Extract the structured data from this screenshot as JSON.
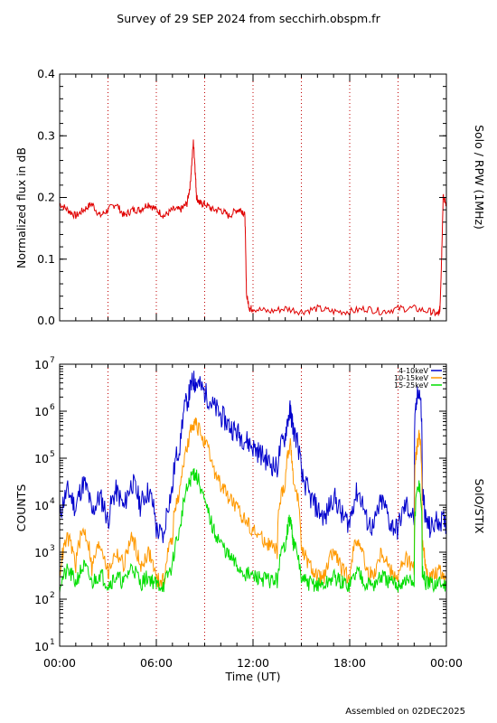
{
  "title": "Survey of 29 SEP 2024 from secchirh.obspm.fr",
  "footer": "Assembled on 02DEC2025",
  "x_axis": {
    "label": "Time (UT)",
    "ticks": [
      "00:00",
      "06:00",
      "12:00",
      "18:00",
      "00:00"
    ],
    "tick_hours": [
      0,
      6,
      12,
      18,
      24
    ],
    "range_hours": [
      0,
      24
    ],
    "dotted_line_hours": [
      3,
      6,
      9,
      12,
      15,
      18,
      21
    ]
  },
  "colors": {
    "rpw": "#e00000",
    "low": "#0000cc",
    "mid": "#ff9900",
    "high": "#00dd00",
    "grid": "#c00000"
  },
  "chart_data": [
    {
      "type": "line",
      "ylabel": "Normalized flux in dB",
      "right_label": "Solo / RPW (1MHz)",
      "ylim": [
        0.0,
        0.4
      ],
      "yticks": [
        "0.0",
        "0.1",
        "0.2",
        "0.3",
        "0.4"
      ],
      "ytick_values": [
        0.0,
        0.1,
        0.2,
        0.3,
        0.4
      ],
      "series": [
        {
          "x": [
            0,
            0.5,
            1,
            1.5,
            2,
            2.5,
            3,
            3.5,
            4,
            4.5,
            5,
            5.5,
            6,
            6.5,
            7,
            7.5,
            7.9,
            8.1,
            8.3,
            8.4,
            8.5,
            8.7,
            9,
            9.5,
            10,
            10.5,
            11,
            11.3,
            11.5,
            11.6,
            11.8,
            12,
            13,
            14,
            15,
            16,
            17,
            18,
            19,
            20,
            21,
            22,
            23,
            23.5,
            23.6,
            23.7,
            23.8,
            24
          ],
          "y": [
            0.19,
            0.18,
            0.17,
            0.18,
            0.19,
            0.17,
            0.18,
            0.19,
            0.17,
            0.18,
            0.18,
            0.19,
            0.18,
            0.17,
            0.18,
            0.18,
            0.19,
            0.22,
            0.29,
            0.25,
            0.2,
            0.19,
            0.19,
            0.18,
            0.18,
            0.17,
            0.18,
            0.18,
            0.17,
            0.04,
            0.02,
            0.02,
            0.015,
            0.02,
            0.015,
            0.02,
            0.015,
            0.015,
            0.02,
            0.015,
            0.02,
            0.02,
            0.015,
            0.01,
            0.02,
            0.1,
            0.2,
            0.19
          ]
        }
      ]
    },
    {
      "type": "line",
      "ylabel": "COUNTS",
      "right_label": "SolO/STIX",
      "yscale": "log",
      "ylim": [
        10,
        10000000
      ],
      "yticks": [
        "10",
        "10",
        "10",
        "10",
        "10",
        "10",
        "10"
      ],
      "ytick_exponents": [
        "1",
        "2",
        "3",
        "4",
        "5",
        "6",
        "7"
      ],
      "ytick_values": [
        10,
        100,
        1000,
        10000,
        100000,
        1000000,
        10000000
      ],
      "series": [
        {
          "name": "4-10keV",
          "x": [
            0,
            0.5,
            1,
            1.5,
            2,
            2.5,
            3,
            3.5,
            4,
            4.5,
            5,
            5.5,
            6,
            6.5,
            7,
            7.5,
            8,
            8.3,
            8.5,
            9,
            9.5,
            10,
            10.5,
            11,
            11.5,
            12,
            12.5,
            13,
            13.5,
            14,
            14.3,
            14.5,
            15,
            15.5,
            16,
            16.5,
            17,
            17.5,
            18,
            18.5,
            19,
            19.5,
            20,
            20.5,
            21,
            21.5,
            22,
            22.3,
            22.5,
            22.7,
            23,
            23.5,
            24
          ],
          "y": [
            5000,
            20000,
            8000,
            30000,
            6000,
            15000,
            4000,
            20000,
            8000,
            30000,
            10000,
            20000,
            3000,
            2000,
            20000,
            200000,
            2000000,
            4500000,
            4000000,
            2500000,
            1300000,
            800000,
            500000,
            350000,
            250000,
            170000,
            120000,
            80000,
            60000,
            300000,
            1000000,
            400000,
            40000,
            15000,
            8000,
            5000,
            15000,
            6000,
            4000,
            20000,
            5000,
            3000,
            12000,
            4000,
            3000,
            10000,
            5000,
            3000000,
            20000,
            5000,
            3000,
            5000,
            4000
          ]
        },
        {
          "name": "10-15keV",
          "x": [
            0,
            0.5,
            1,
            1.5,
            2,
            2.5,
            3,
            3.5,
            4,
            4.5,
            5,
            5.5,
            6,
            6.5,
            7,
            7.5,
            8,
            8.3,
            8.5,
            9,
            9.5,
            10,
            10.5,
            11,
            11.5,
            12,
            12.5,
            13,
            13.5,
            14,
            14.3,
            14.5,
            15,
            15.5,
            16,
            16.5,
            17,
            17.5,
            18,
            18.5,
            19,
            19.5,
            20,
            20.5,
            21,
            21.5,
            22,
            22.3,
            22.5,
            22.7,
            23,
            23.5,
            24
          ],
          "y": [
            300,
            2000,
            500,
            3000,
            400,
            1500,
            300,
            1000,
            500,
            2000,
            400,
            1000,
            250,
            250,
            2000,
            20000,
            200000,
            600000,
            500000,
            200000,
            60000,
            25000,
            15000,
            8000,
            5000,
            3000,
            2000,
            1500,
            1000,
            30000,
            200000,
            30000,
            1000,
            500,
            300,
            300,
            1000,
            400,
            300,
            2000,
            400,
            300,
            1000,
            400,
            300,
            700,
            400,
            300000,
            2000,
            400,
            300,
            400,
            300
          ]
        },
        {
          "name": "15-25keV",
          "x": [
            0,
            0.5,
            1,
            1.5,
            2,
            2.5,
            3,
            3.5,
            4,
            4.5,
            5,
            5.5,
            6,
            6.5,
            7,
            7.5,
            8,
            8.3,
            8.5,
            9,
            9.5,
            10,
            10.5,
            11,
            11.5,
            12,
            12.5,
            13,
            13.5,
            14,
            14.3,
            14.5,
            15,
            15.5,
            16,
            16.5,
            17,
            17.5,
            18,
            18.5,
            19,
            19.5,
            20,
            20.5,
            21,
            21.5,
            22,
            22.3,
            22.5,
            22.7,
            23,
            23.5,
            24
          ],
          "y": [
            200,
            400,
            220,
            500,
            210,
            350,
            200,
            300,
            220,
            500,
            210,
            300,
            200,
            200,
            500,
            3000,
            25000,
            50000,
            40000,
            10000,
            3000,
            1500,
            800,
            500,
            350,
            300,
            280,
            250,
            250,
            1500,
            5000,
            1500,
            250,
            220,
            200,
            200,
            300,
            220,
            200,
            400,
            220,
            200,
            300,
            220,
            200,
            250,
            220,
            30000,
            400,
            220,
            200,
            220,
            200
          ]
        }
      ]
    }
  ]
}
